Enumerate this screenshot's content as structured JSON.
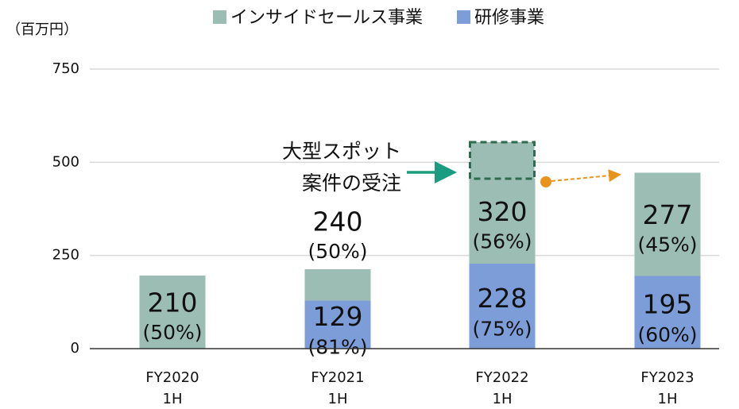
{
  "chart_data": {
    "type": "stacked_bar",
    "unit_label": "（百万円）",
    "categories": [
      [
        "FY2020",
        "1H"
      ],
      [
        "FY2021",
        "1H"
      ],
      [
        "FY2022",
        "1H"
      ],
      [
        "FY2023",
        "1H"
      ]
    ],
    "series": [
      {
        "name": "インサイドセールス事業",
        "color": "#9bbdb4",
        "values": [
          196,
          84,
          228,
          277
        ]
      },
      {
        "name": "研修事業",
        "color": "#7d9dd8",
        "values": [
          null,
          129,
          228,
          195
        ],
        "notes": [
          null,
          "(81%)",
          "(75%)",
          "(60%)"
        ]
      }
    ],
    "annotations": [
      {
        "text": "210",
        "note": "(50%)"
      },
      {
        "text": "240",
        "note": "(50%)"
      },
      {
        "text": "320",
        "note": "(56%)"
      },
      {
        "text": "277",
        "note": "(45%)"
      }
    ],
    "highlight": {
      "category": 2,
      "value": 98,
      "lines": [
        "大型スポット",
        "案件の受注"
      ]
    },
    "ylim": [
      0,
      750
    ],
    "yticks": [
      0,
      250,
      500,
      750
    ],
    "grid": true
  }
}
